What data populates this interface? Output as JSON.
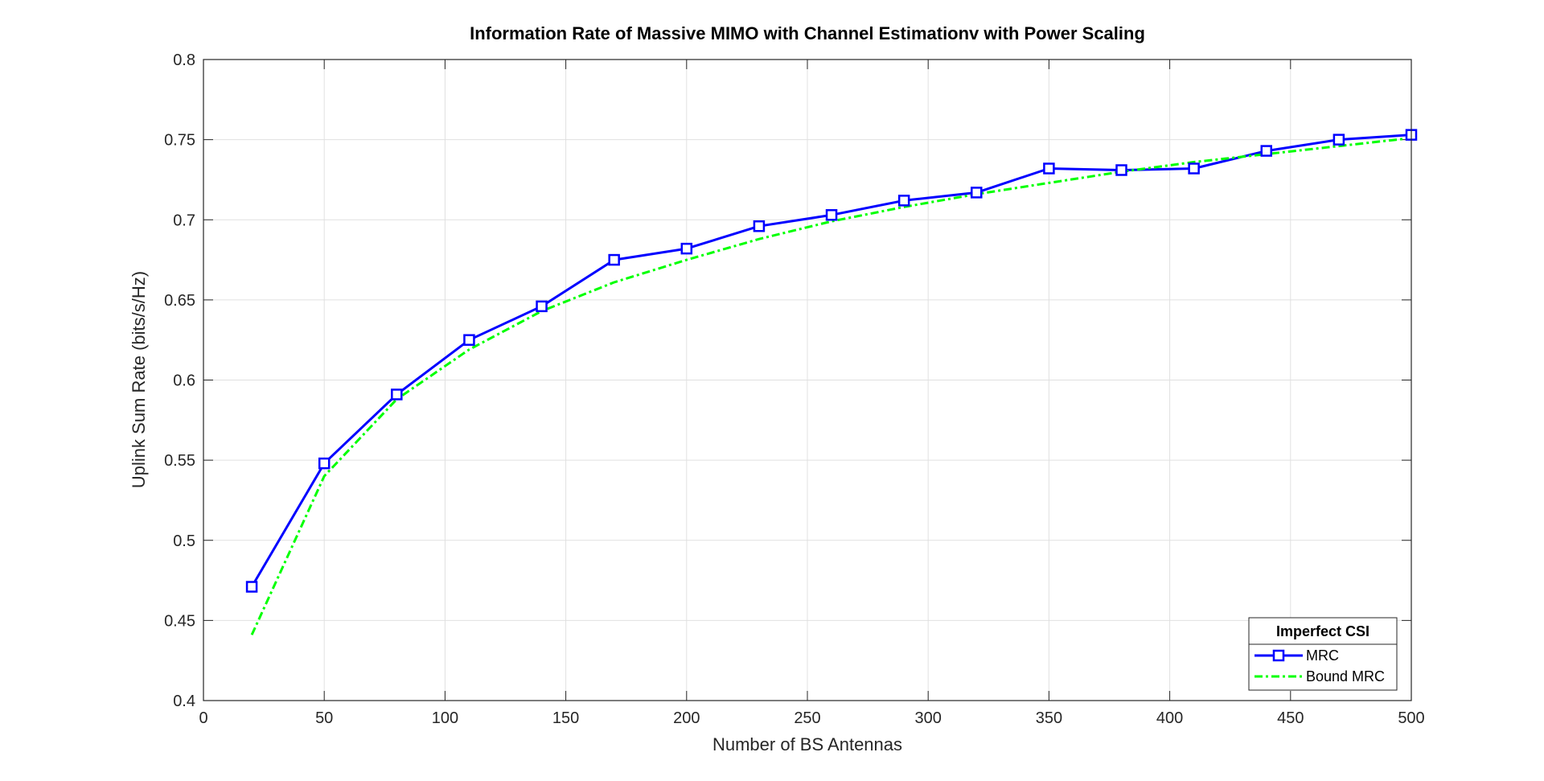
{
  "chart_data": {
    "type": "line",
    "title": "Information Rate of Massive MIMO with Channel Estimationv with Power Scaling",
    "xlabel": "Number of BS Antennas",
    "ylabel": "Uplink Sum Rate (bits/s/Hz)",
    "xlim": [
      0,
      500
    ],
    "ylim": [
      0.4,
      0.8
    ],
    "xticks": [
      0,
      50,
      100,
      150,
      200,
      250,
      300,
      350,
      400,
      450,
      500
    ],
    "xtick_labels": [
      "0",
      "50",
      "100",
      "150",
      "200",
      "250",
      "300",
      "350",
      "400",
      "450",
      "500"
    ],
    "yticks": [
      0.4,
      0.45,
      0.5,
      0.55,
      0.6,
      0.65,
      0.7,
      0.75,
      0.8
    ],
    "ytick_labels": [
      "0.4",
      "0.45",
      "0.5",
      "0.55",
      "0.6",
      "0.65",
      "0.7",
      "0.75",
      "0.8"
    ],
    "grid": true,
    "legend": {
      "title": "Imperfect CSI",
      "position": "bottom-right"
    },
    "series": [
      {
        "name": "MRC",
        "color": "#0000FF",
        "line_style": "solid",
        "marker": "square",
        "x": [
          20,
          50,
          80,
          110,
          140,
          170,
          200,
          230,
          260,
          290,
          320,
          350,
          380,
          410,
          440,
          470,
          500
        ],
        "y": [
          0.471,
          0.548,
          0.591,
          0.625,
          0.646,
          0.675,
          0.682,
          0.696,
          0.703,
          0.712,
          0.717,
          0.732,
          0.731,
          0.732,
          0.743,
          0.75,
          0.753
        ]
      },
      {
        "name": "Bound MRC",
        "color": "#00FF00",
        "line_style": "dash-dot",
        "marker": "none",
        "x": [
          20,
          50,
          80,
          110,
          140,
          170,
          200,
          230,
          260,
          290,
          320,
          350,
          380,
          410,
          440,
          470,
          500
        ],
        "y": [
          0.441,
          0.54,
          0.588,
          0.619,
          0.643,
          0.661,
          0.675,
          0.688,
          0.699,
          0.708,
          0.716,
          0.723,
          0.73,
          0.736,
          0.741,
          0.746,
          0.751
        ]
      }
    ]
  }
}
